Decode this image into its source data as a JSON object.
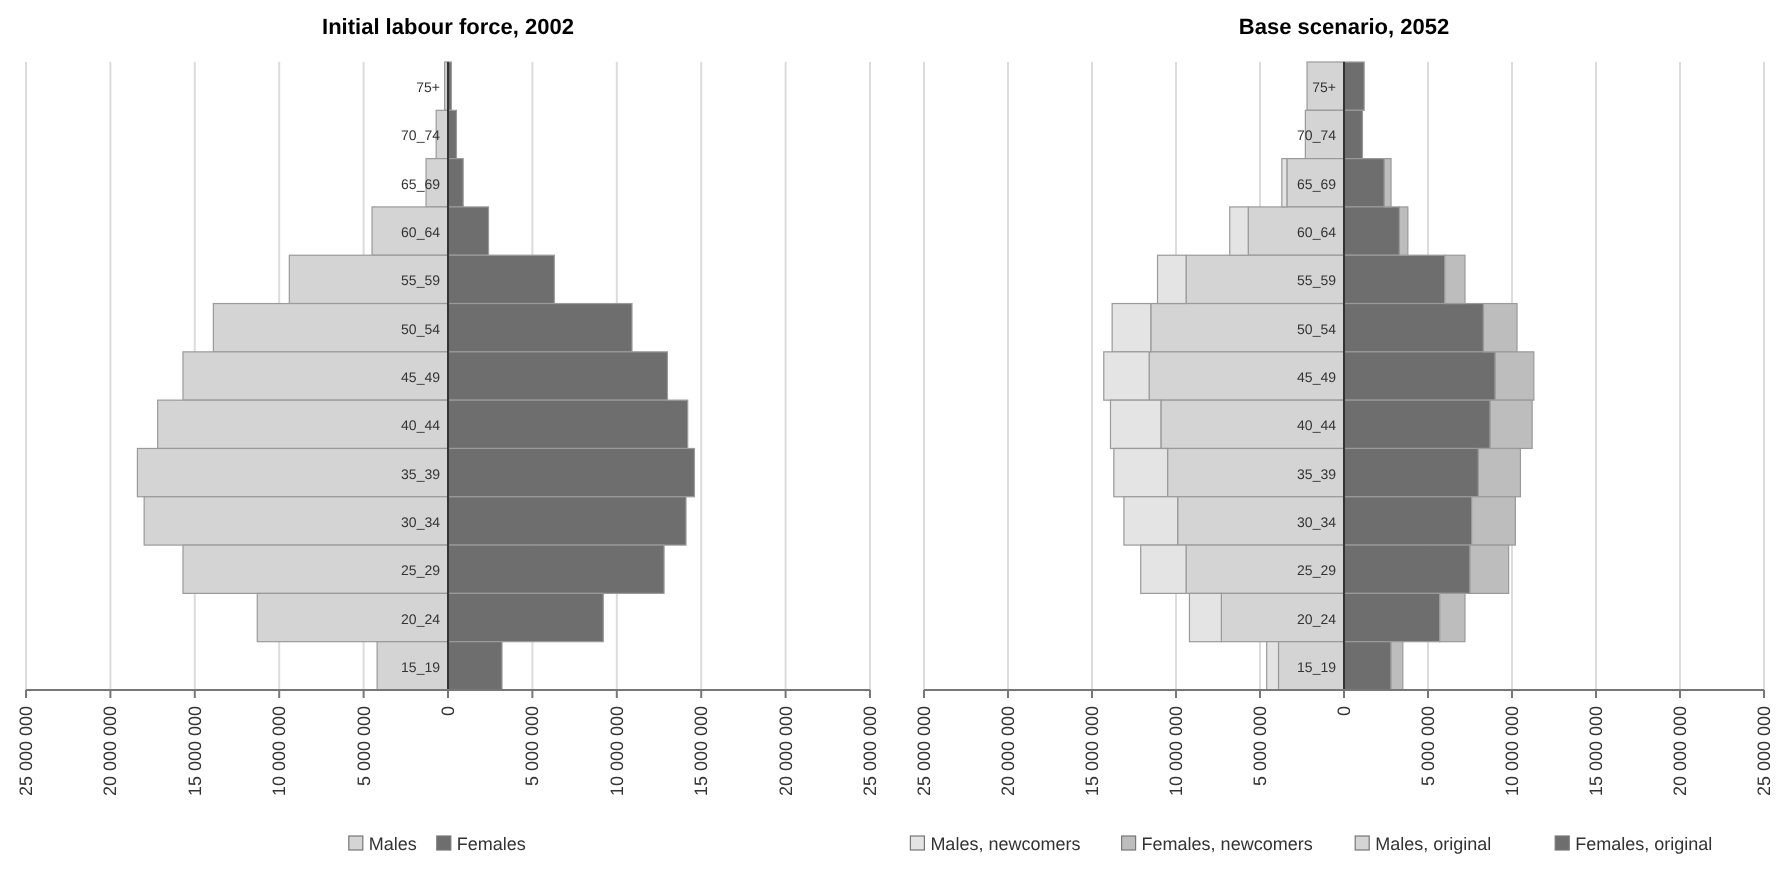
{
  "chart_data": [
    {
      "type": "bar",
      "title": "Initial labour force, 2002",
      "orientation": "horizontal",
      "stacked": true,
      "categories": [
        "75+",
        "70_74",
        "65_69",
        "60_64",
        "55_59",
        "50_54",
        "45_49",
        "40_44",
        "35_39",
        "30_34",
        "25_29",
        "20_24",
        "15_19"
      ],
      "series": [
        {
          "name": "Females",
          "color": "#6e6e6e",
          "values": [
            200000,
            500000,
            900000,
            2400000,
            6300000,
            10900000,
            13000000,
            14200000,
            14600000,
            14100000,
            12800000,
            9200000,
            3200000
          ]
        },
        {
          "name": "Males",
          "color": "#d4d4d4",
          "values": [
            -200000,
            -700000,
            -1300000,
            -4500000,
            -9400000,
            -13900000,
            -15700000,
            -17200000,
            -18400000,
            -18000000,
            -15700000,
            -11300000,
            -4200000
          ]
        }
      ],
      "xlim": [
        -25000000,
        25000000
      ],
      "xticks": [
        {
          "value": -25000000,
          "label": "25 000 000"
        },
        {
          "value": -20000000,
          "label": "20 000 000"
        },
        {
          "value": -15000000,
          "label": "15 000 000"
        },
        {
          "value": -10000000,
          "label": "10 000 000"
        },
        {
          "value": -5000000,
          "label": "5 000 000"
        },
        {
          "value": 0,
          "label": "0"
        },
        {
          "value": 5000000,
          "label": "5 000 000"
        },
        {
          "value": 10000000,
          "label": "10 000 000"
        },
        {
          "value": 15000000,
          "label": "15 000 000"
        },
        {
          "value": 20000000,
          "label": "20 000 000"
        },
        {
          "value": 25000000,
          "label": "25 000 000"
        }
      ],
      "grid": "x",
      "legend": "bottom"
    },
    {
      "type": "bar",
      "title": "Base scenario, 2052",
      "orientation": "horizontal",
      "stacked": true,
      "categories": [
        "75+",
        "70_74",
        "65_69",
        "60_64",
        "55_59",
        "50_54",
        "45_49",
        "40_44",
        "35_39",
        "30_34",
        "25_29",
        "20_24",
        "15_19"
      ],
      "series": [
        {
          "name": "Females, original",
          "color": "#6e6e6e",
          "values": [
            1200000,
            1100000,
            2400000,
            3300000,
            6000000,
            8300000,
            9000000,
            8700000,
            8000000,
            7600000,
            7500000,
            5700000,
            2800000
          ]
        },
        {
          "name": "Males, original",
          "color": "#d4d4d4",
          "values": [
            -2200000,
            -2300000,
            -3400000,
            -5700000,
            -9400000,
            -11500000,
            -11600000,
            -10900000,
            -10500000,
            -9900000,
            -9400000,
            -7300000,
            -3900000
          ]
        },
        {
          "name": "Females, newcomers",
          "color": "#bdbdbd",
          "values": [
            0,
            0,
            400000,
            500000,
            1200000,
            2000000,
            2300000,
            2500000,
            2500000,
            2600000,
            2300000,
            1500000,
            700000
          ]
        },
        {
          "name": "Males, newcomers",
          "color": "#e4e4e4",
          "values": [
            0,
            0,
            -300000,
            -1100000,
            -1700000,
            -2300000,
            -2700000,
            -3000000,
            -3200000,
            -3200000,
            -2700000,
            -1900000,
            -700000
          ]
        }
      ],
      "xlim": [
        -25000000,
        25000000
      ],
      "xticks": [
        {
          "value": -25000000,
          "label": "25 000 000"
        },
        {
          "value": -20000000,
          "label": "20 000 000"
        },
        {
          "value": -15000000,
          "label": "15 000 000"
        },
        {
          "value": -10000000,
          "label": "10 000 000"
        },
        {
          "value": -5000000,
          "label": "5 000 000"
        },
        {
          "value": 0,
          "label": "0"
        },
        {
          "value": 5000000,
          "label": "5 000 000"
        },
        {
          "value": 10000000,
          "label": "10 000 000"
        },
        {
          "value": 15000000,
          "label": "15 000 000"
        },
        {
          "value": 20000000,
          "label": "20 000 000"
        },
        {
          "value": 25000000,
          "label": "25 000 000"
        }
      ],
      "grid": "x",
      "legend": "bottom"
    }
  ]
}
